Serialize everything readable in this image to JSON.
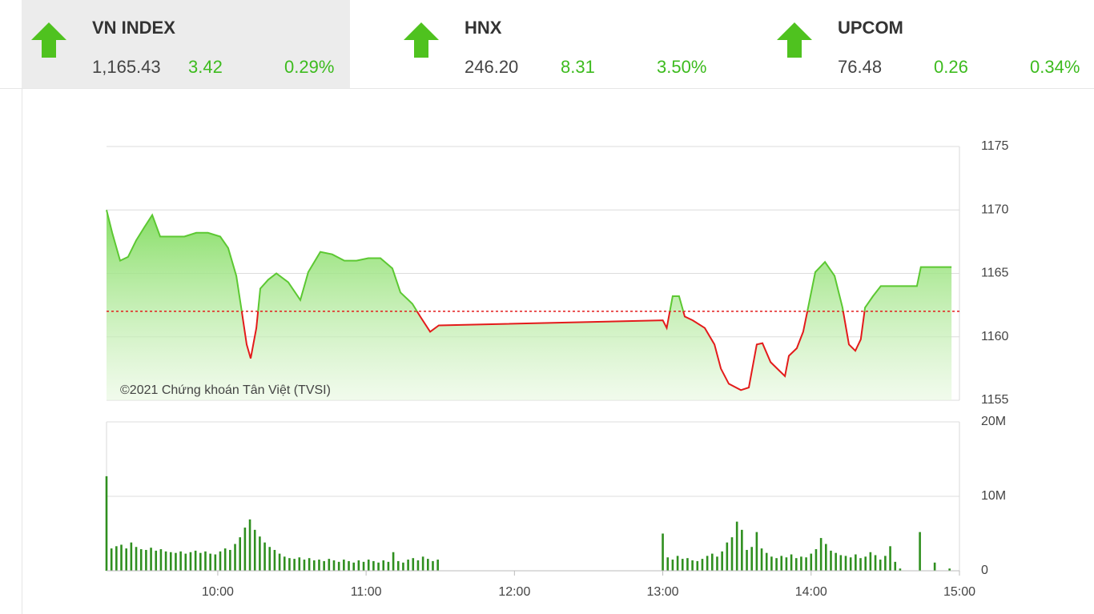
{
  "header": {
    "indices": [
      {
        "name": "VN INDEX",
        "value": "1,165.43",
        "change": "3.42",
        "percent": "0.29%"
      },
      {
        "name": "HNX",
        "value": "246.20",
        "change": "8.31",
        "percent": "3.50%"
      },
      {
        "name": "UPCOM",
        "value": "76.48",
        "change": "0.26",
        "percent": "0.34%"
      }
    ]
  },
  "chart_data": [
    {
      "type": "line",
      "watermark": "©2021 Chứng khoán Tân Việt (TVSI)",
      "color": "#5cc832",
      "color_below": "#e31b1b",
      "reference": 1162.01,
      "reference_color": "#e31b1b",
      "xlim": [
        555,
        900
      ],
      "ylim": [
        1155,
        1175
      ],
      "yticks": [
        1155,
        1160,
        1165,
        1170,
        1175
      ],
      "grid": true,
      "x": [
        555,
        557.3,
        560.5,
        563.7,
        567,
        570.2,
        573.5,
        576.7,
        581.6,
        586.5,
        591.3,
        596,
        601,
        604.2,
        607.5,
        609.7,
        611.7,
        613.3,
        615.6,
        617.2,
        620.4,
        623.7,
        628.5,
        633.4,
        636.6,
        641.5,
        646.3,
        651.2,
        656.1,
        660.9,
        665.8,
        670.6,
        673.9,
        678.7,
        681.9,
        685.9,
        689.4,
        780,
        781.6,
        784,
        786.6,
        788.9,
        792.1,
        797,
        800.9,
        803.5,
        806.7,
        811.6,
        814.8,
        818,
        820.3,
        823.6,
        826.8,
        829.4,
        831,
        834.2,
        836.8,
        839.1,
        841.7,
        845.6,
        849.5,
        852.7,
        855.3,
        857.9,
        860.1,
        861.8,
        865,
        868.2,
        882.8,
        884.4,
        896.8
      ],
      "values": [
        1170.0,
        1168.2,
        1166.0,
        1166.3,
        1167.6,
        1168.6,
        1169.6,
        1167.9,
        1167.9,
        1167.9,
        1168.2,
        1168.2,
        1167.9,
        1167.0,
        1164.8,
        1162.0,
        1159.4,
        1158.3,
        1160.7,
        1163.8,
        1164.5,
        1165.0,
        1164.3,
        1162.9,
        1165.1,
        1166.7,
        1166.5,
        1166.0,
        1166.0,
        1166.2,
        1166.2,
        1165.4,
        1163.5,
        1162.6,
        1161.6,
        1160.4,
        1160.9,
        1161.3,
        1160.7,
        1163.2,
        1163.2,
        1161.6,
        1161.3,
        1160.7,
        1159.4,
        1157.5,
        1156.3,
        1155.8,
        1156.0,
        1159.4,
        1159.5,
        1158.0,
        1157.4,
        1156.9,
        1158.5,
        1159.1,
        1160.4,
        1162.6,
        1165.1,
        1165.9,
        1164.8,
        1162.3,
        1159.4,
        1158.9,
        1159.8,
        1162.3,
        1163.2,
        1164.0,
        1164.0,
        1165.5,
        1165.5
      ]
    },
    {
      "type": "bar",
      "color": "#2f8f1f",
      "xlim": [
        555,
        900
      ],
      "ylim": [
        0,
        20000000
      ],
      "yticks": [
        0,
        {
          "value": 10000000,
          "label": "10M"
        },
        {
          "value": 20000000,
          "label": "20M"
        }
      ],
      "grid": true,
      "xticks": [
        {
          "value": 600,
          "label": "10:00"
        },
        {
          "value": 660,
          "label": "11:00"
        },
        {
          "value": 720,
          "label": "12:00"
        },
        {
          "value": 780,
          "label": "13:00"
        },
        {
          "value": 840,
          "label": "14:00"
        },
        {
          "value": 900,
          "label": "15:00"
        }
      ],
      "x": [
        555,
        557,
        559,
        561,
        563,
        565,
        567,
        569,
        571,
        573,
        575,
        577,
        579,
        581,
        583,
        585,
        587,
        589,
        591,
        593,
        595,
        597,
        599,
        601,
        603,
        605,
        607,
        609,
        611,
        613,
        615,
        617,
        619,
        621,
        623,
        625,
        627,
        629,
        631,
        633,
        635,
        637,
        639,
        641,
        643,
        645,
        647,
        649,
        651,
        653,
        655,
        657,
        659,
        661,
        663,
        665,
        667,
        669,
        671,
        673,
        675,
        677,
        679,
        681,
        683,
        685,
        687,
        689,
        780,
        782,
        784,
        786,
        788,
        790,
        792,
        794,
        796,
        798,
        800,
        802,
        804,
        806,
        808,
        810,
        812,
        814,
        816,
        818,
        820,
        822,
        824,
        826,
        828,
        830,
        832,
        834,
        836,
        838,
        840,
        842,
        844,
        846,
        848,
        850,
        852,
        854,
        856,
        858,
        860,
        862,
        864,
        866,
        868,
        870,
        872,
        874,
        876,
        884,
        890,
        896
      ],
      "values": [
        12700000,
        3000000,
        3300000,
        3500000,
        3000000,
        3800000,
        3200000,
        2900000,
        2800000,
        3100000,
        2700000,
        2900000,
        2600000,
        2500000,
        2400000,
        2600000,
        2300000,
        2500000,
        2700000,
        2400000,
        2600000,
        2300000,
        2200000,
        2600000,
        3000000,
        2800000,
        3600000,
        4500000,
        5800000,
        6900000,
        5500000,
        4600000,
        3800000,
        3200000,
        2800000,
        2300000,
        1900000,
        1700000,
        1600000,
        1800000,
        1500000,
        1700000,
        1400000,
        1500000,
        1300000,
        1600000,
        1400000,
        1200000,
        1500000,
        1300000,
        1100000,
        1400000,
        1200000,
        1500000,
        1300000,
        1100000,
        1400000,
        1200000,
        2500000,
        1300000,
        1100000,
        1500000,
        1700000,
        1400000,
        1900000,
        1600000,
        1300000,
        1500000,
        5000000,
        1800000,
        1500000,
        2000000,
        1600000,
        1700000,
        1400000,
        1300000,
        1600000,
        2000000,
        2300000,
        1900000,
        2600000,
        3800000,
        4500000,
        6600000,
        5500000,
        2800000,
        3200000,
        5200000,
        3000000,
        2400000,
        1900000,
        1700000,
        2000000,
        1800000,
        2200000,
        1700000,
        1900000,
        1800000,
        2300000,
        2900000,
        4400000,
        3600000,
        2700000,
        2400000,
        2100000,
        2000000,
        1800000,
        2200000,
        1700000,
        1900000,
        2500000,
        2100000,
        1500000,
        2000000,
        3300000,
        1200000,
        300000,
        5200000,
        1100000,
        300000
      ]
    }
  ]
}
